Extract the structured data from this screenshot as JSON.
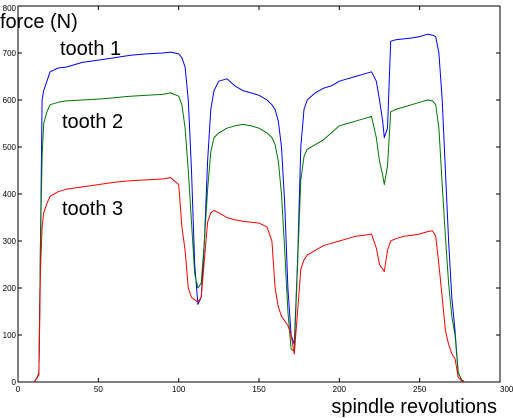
{
  "chart_data": {
    "type": "line",
    "xlabel": "spindle revolutions",
    "ylabel": "force (N)",
    "xlim": [
      0,
      300
    ],
    "ylim": [
      0,
      800
    ],
    "xticks": [
      0,
      50,
      100,
      150,
      200,
      250,
      300
    ],
    "yticks": [
      0,
      100,
      200,
      300,
      400,
      500,
      600,
      700,
      800
    ],
    "grid": false,
    "series": [
      {
        "name": "tooth 1",
        "color": "#0000ff",
        "x": [
          10,
          12,
          13,
          14,
          15,
          16,
          18,
          20,
          25,
          30,
          40,
          50,
          60,
          70,
          80,
          90,
          95,
          100,
          102,
          104,
          106,
          108,
          110,
          112,
          114,
          116,
          118,
          120,
          122,
          125,
          130,
          135,
          140,
          145,
          150,
          155,
          158,
          160,
          162,
          164,
          166,
          168,
          170,
          172,
          174,
          176,
          178,
          180,
          185,
          190,
          195,
          200,
          205,
          210,
          215,
          220,
          223,
          225,
          227,
          228,
          230,
          232,
          235,
          240,
          245,
          250,
          255,
          258,
          260,
          262,
          264,
          266,
          268,
          270,
          272,
          274,
          276,
          278
        ],
        "values": [
          0,
          10,
          20,
          300,
          600,
          620,
          640,
          660,
          668,
          670,
          680,
          685,
          690,
          695,
          698,
          700,
          702,
          698,
          690,
          670,
          600,
          450,
          250,
          165,
          180,
          300,
          470,
          580,
          620,
          640,
          645,
          630,
          620,
          615,
          610,
          600,
          590,
          580,
          555,
          500,
          380,
          200,
          100,
          80,
          260,
          500,
          580,
          600,
          615,
          625,
          630,
          640,
          645,
          650,
          655,
          660,
          640,
          600,
          555,
          520,
          540,
          725,
          728,
          730,
          732,
          735,
          740,
          738,
          735,
          700,
          600,
          450,
          300,
          180,
          110,
          20,
          5,
          0
        ]
      },
      {
        "name": "tooth 2",
        "color": "#007700",
        "x": [
          10,
          12,
          13,
          14,
          15,
          16,
          18,
          20,
          25,
          30,
          40,
          50,
          60,
          70,
          80,
          90,
          95,
          100,
          102,
          104,
          106,
          108,
          110,
          112,
          114,
          116,
          118,
          120,
          122,
          125,
          130,
          135,
          140,
          145,
          150,
          155,
          158,
          160,
          162,
          164,
          166,
          168,
          170,
          172,
          174,
          176,
          178,
          180,
          185,
          190,
          195,
          200,
          205,
          210,
          215,
          220,
          223,
          225,
          227,
          228,
          230,
          232,
          235,
          240,
          245,
          250,
          255,
          258,
          260,
          262,
          264,
          266,
          268,
          270,
          272,
          274,
          276,
          278
        ],
        "values": [
          0,
          10,
          20,
          300,
          480,
          550,
          575,
          590,
          595,
          598,
          600,
          602,
          605,
          608,
          610,
          612,
          615,
          608,
          590,
          540,
          450,
          340,
          230,
          200,
          210,
          300,
          410,
          490,
          520,
          530,
          540,
          545,
          548,
          545,
          540,
          530,
          520,
          505,
          470,
          400,
          280,
          150,
          70,
          65,
          250,
          430,
          480,
          495,
          505,
          515,
          530,
          545,
          550,
          555,
          560,
          565,
          520,
          470,
          440,
          420,
          460,
          575,
          580,
          585,
          590,
          595,
          600,
          598,
          590,
          540,
          420,
          310,
          210,
          140,
          100,
          20,
          5,
          0
        ]
      },
      {
        "name": "tooth 3",
        "color": "#ff0000",
        "x": [
          10,
          12,
          13,
          14,
          15,
          16,
          18,
          20,
          25,
          30,
          40,
          50,
          60,
          70,
          80,
          90,
          95,
          100,
          102,
          104,
          106,
          108,
          110,
          112,
          114,
          116,
          118,
          120,
          122,
          125,
          130,
          135,
          140,
          145,
          150,
          155,
          158,
          160,
          162,
          164,
          166,
          168,
          170,
          172,
          174,
          176,
          178,
          180,
          185,
          190,
          195,
          200,
          205,
          210,
          215,
          220,
          223,
          225,
          227,
          228,
          230,
          232,
          235,
          240,
          245,
          250,
          255,
          258,
          260,
          262,
          264,
          266,
          268,
          270,
          272,
          274,
          276,
          278
        ],
        "values": [
          0,
          10,
          15,
          240,
          330,
          360,
          380,
          395,
          405,
          410,
          415,
          420,
          425,
          428,
          430,
          432,
          435,
          420,
          330,
          280,
          200,
          180,
          175,
          170,
          180,
          260,
          340,
          360,
          365,
          360,
          350,
          345,
          342,
          340,
          338,
          330,
          300,
          200,
          160,
          140,
          130,
          120,
          100,
          60,
          150,
          240,
          260,
          270,
          280,
          290,
          295,
          300,
          305,
          310,
          312,
          315,
          285,
          250,
          240,
          235,
          280,
          300,
          305,
          310,
          312,
          315,
          320,
          322,
          310,
          250,
          180,
          110,
          80,
          60,
          50,
          10,
          3,
          0
        ]
      }
    ]
  }
}
